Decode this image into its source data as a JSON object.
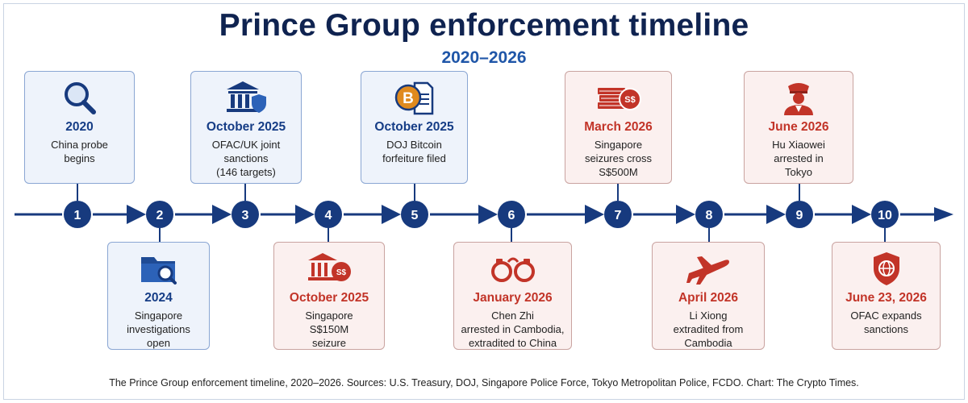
{
  "header": {
    "title": "Prince Group enforcement timeline",
    "subtitle": "2020–2026"
  },
  "colors": {
    "navy": "#173a7e",
    "blue_accent": "#1f56a8",
    "red_accent": "#c23428",
    "card_blue_bg": "#eef3fb",
    "card_red_bg": "#fbf0ef"
  },
  "events": [
    {
      "step": "1",
      "date": "2020",
      "desc": "China probe\nbegins",
      "icon": "magnifying-glass-icon"
    },
    {
      "step": "2",
      "date": "2024",
      "desc": "Singapore\ninvestigations\nopen",
      "icon": "folder-search-icon"
    },
    {
      "step": "3",
      "date": "October 2025",
      "desc": "OFAC/UK joint\nsanctions\n(146 targets)",
      "icon": "bank-shield-icon"
    },
    {
      "step": "4",
      "date": "October 2025",
      "desc": "Singapore\nS$150M\nseizure",
      "icon": "bank-sgd-icon"
    },
    {
      "step": "5",
      "date": "October 2025",
      "desc": "DOJ Bitcoin\nforfeiture filed",
      "icon": "bitcoin-document-icon"
    },
    {
      "step": "6",
      "date": "January 2026",
      "desc": "Chen Zhi\narrested in Cambodia,\nextradited to China",
      "icon": "handcuffs-icon"
    },
    {
      "step": "7",
      "date": "March 2026",
      "desc": "Singapore\nseizures cross\nS$500M",
      "icon": "money-stack-icon"
    },
    {
      "step": "8",
      "date": "April 2026",
      "desc": "Li Xiong\nextradited from\nCambodia",
      "icon": "airplane-icon"
    },
    {
      "step": "9",
      "date": "June 2026",
      "desc": "Hu Xiaowei\narrested in\nTokyo",
      "icon": "police-officer-icon"
    },
    {
      "step": "10",
      "date": "June 23, 2026",
      "desc": "OFAC expands\nsanctions",
      "icon": "globe-shield-icon"
    }
  ],
  "footer": {
    "caption": "The Prince Group enforcement timeline, 2020–2026. Sources: U.S. Treasury, DOJ, Singapore Police Force, Tokyo Metropolitan Police, FCDO. Chart: The Crypto Times."
  }
}
